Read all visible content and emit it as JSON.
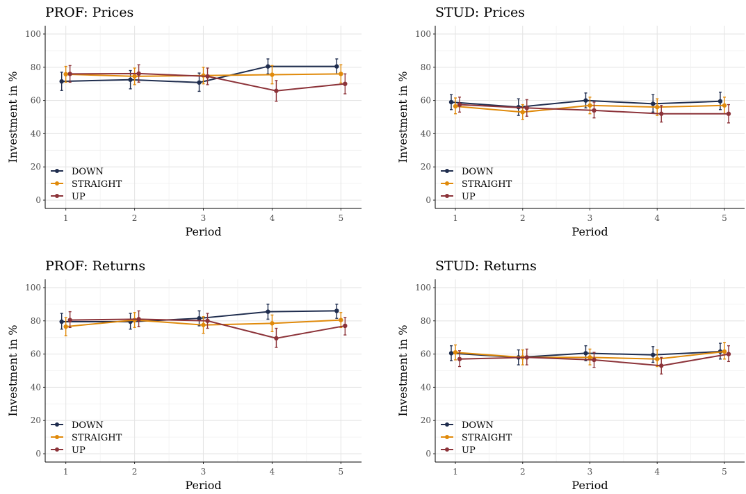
{
  "figure": {
    "colors": {
      "DOWN": "#1f2d4e",
      "STRAIGHT": "#e08a0b",
      "UP": "#8c3339"
    }
  },
  "chart_data": [
    {
      "type": "line",
      "title": "PROF: Prices",
      "xlabel": "Period",
      "ylabel": "Investment in %",
      "x": [
        1,
        2,
        3,
        4,
        5
      ],
      "xticks": [
        "1",
        "2",
        "3",
        "4",
        "5"
      ],
      "yticks": [
        "0",
        "20",
        "40",
        "60",
        "80",
        "100"
      ],
      "ylim": [
        -5,
        105
      ],
      "grid": true,
      "legend_position": "bottom-left",
      "series": [
        {
          "name": "DOWN",
          "values": [
            71.5,
            72.5,
            70.8,
            80.5,
            80.5
          ],
          "err_low": [
            66,
            67,
            65.5,
            76,
            76
          ],
          "err_high": [
            77,
            78,
            76.5,
            85,
            85
          ]
        },
        {
          "name": "STRAIGHT",
          "values": [
            75.8,
            74.5,
            75,
            75.5,
            76
          ],
          "err_low": [
            71,
            69.5,
            70,
            70,
            70.5
          ],
          "err_high": [
            80.5,
            79.5,
            80,
            81,
            81.5
          ]
        },
        {
          "name": "UP",
          "values": [
            76,
            76.2,
            74.5,
            65.8,
            70
          ],
          "err_low": [
            71,
            71,
            69.5,
            59.5,
            64
          ],
          "err_high": [
            81,
            81.5,
            79.5,
            72,
            76
          ]
        }
      ]
    },
    {
      "type": "line",
      "title": "STUD: Prices",
      "xlabel": "Period",
      "ylabel": "Investment in %",
      "x": [
        1,
        2,
        3,
        4,
        5
      ],
      "xticks": [
        "1",
        "2",
        "3",
        "4",
        "5"
      ],
      "yticks": [
        "0",
        "20",
        "40",
        "60",
        "80",
        "100"
      ],
      "ylim": [
        -5,
        105
      ],
      "grid": true,
      "legend_position": "bottom-left",
      "series": [
        {
          "name": "DOWN",
          "values": [
            59,
            56,
            60,
            58,
            59.5
          ],
          "err_low": [
            54.5,
            51,
            55.5,
            53,
            54.5
          ],
          "err_high": [
            63.5,
            61,
            64.5,
            63.5,
            65
          ]
        },
        {
          "name": "STRAIGHT",
          "values": [
            56.5,
            53,
            57,
            56,
            57
          ],
          "err_low": [
            52,
            48.5,
            52,
            51,
            52
          ],
          "err_high": [
            61.5,
            57.5,
            62,
            61,
            62
          ]
        },
        {
          "name": "UP",
          "values": [
            57.5,
            55.5,
            54,
            52,
            52
          ],
          "err_low": [
            53,
            50.5,
            49.5,
            47,
            46.5
          ],
          "err_high": [
            62,
            60.5,
            59,
            57,
            57.5
          ]
        }
      ]
    },
    {
      "type": "line",
      "title": "PROF: Returns",
      "xlabel": "Period",
      "ylabel": "Investment in %",
      "x": [
        1,
        2,
        3,
        4,
        5
      ],
      "xticks": [
        "1",
        "2",
        "3",
        "4",
        "5"
      ],
      "yticks": [
        "0",
        "20",
        "40",
        "60",
        "80",
        "100"
      ],
      "ylim": [
        -5,
        105
      ],
      "grid": true,
      "legend_position": "bottom-left",
      "series": [
        {
          "name": "DOWN",
          "values": [
            79.5,
            79.5,
            81.5,
            85.5,
            86
          ],
          "err_low": [
            75,
            75,
            77,
            81,
            81.5
          ],
          "err_high": [
            84.5,
            84.5,
            86,
            90,
            90
          ]
        },
        {
          "name": "STRAIGHT",
          "values": [
            76.5,
            80.5,
            77.5,
            78.5,
            80.5
          ],
          "err_low": [
            71,
            76,
            72.5,
            73.5,
            76
          ],
          "err_high": [
            82,
            85,
            82.5,
            83.5,
            85
          ]
        },
        {
          "name": "UP",
          "values": [
            80.5,
            81,
            80,
            69.5,
            77
          ],
          "err_low": [
            76,
            76.5,
            75.5,
            64,
            71.5
          ],
          "err_high": [
            85.5,
            86,
            84.5,
            75.5,
            82
          ]
        }
      ]
    },
    {
      "type": "line",
      "title": "STUD: Returns",
      "xlabel": "Period",
      "ylabel": "Investment in %",
      "x": [
        1,
        2,
        3,
        4,
        5
      ],
      "xticks": [
        "1",
        "2",
        "3",
        "4",
        "5"
      ],
      "yticks": [
        "0",
        "20",
        "40",
        "60",
        "80",
        "100"
      ],
      "ylim": [
        -5,
        105
      ],
      "grid": true,
      "legend_position": "bottom-left",
      "series": [
        {
          "name": "DOWN",
          "values": [
            60.5,
            58,
            60.5,
            59.5,
            61.5
          ],
          "err_low": [
            56,
            53.5,
            56,
            55,
            57
          ],
          "err_high": [
            65,
            62.5,
            65,
            64.5,
            66.5
          ]
        },
        {
          "name": "STRAIGHT",
          "values": [
            61,
            58,
            58,
            57,
            61.5
          ],
          "err_low": [
            56.5,
            53.5,
            53.5,
            52.5,
            57
          ],
          "err_high": [
            65.5,
            62.5,
            63,
            62.5,
            67
          ]
        },
        {
          "name": "UP",
          "values": [
            57,
            58,
            56.5,
            53,
            60
          ],
          "err_low": [
            52.5,
            53.5,
            52,
            48,
            55.5
          ],
          "err_high": [
            62,
            63,
            61,
            58,
            65
          ]
        }
      ]
    }
  ]
}
